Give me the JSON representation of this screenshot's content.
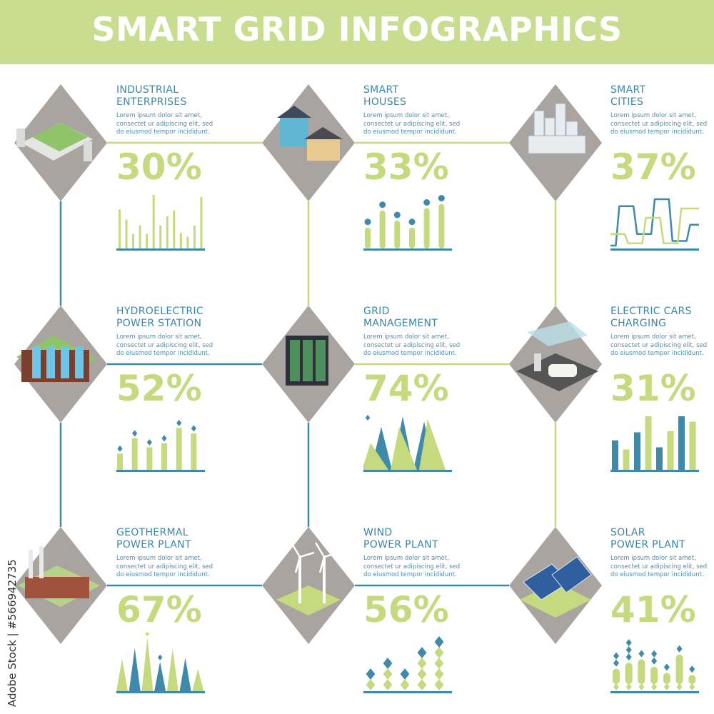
{
  "header": {
    "title": "SMART GRID INFOGRAPHICS"
  },
  "credit": "Adobe Stock | #566942735",
  "colors": {
    "green": "#c5da7e",
    "blue": "#3e8aa8",
    "header": "#c8dd8f",
    "diamond": "#a9a49f",
    "title_text": "#3a87a8"
  },
  "cards": [
    {
      "title1": "INDUSTRIAL",
      "title2": "ENTERPRISES",
      "desc": "Lorem ipsum dolor sit amet, consectet ur adipiscing elit, sed do eiusmod tempor incididunt.",
      "percent": "30%",
      "icon": "factory-icon",
      "chart": {
        "type": "bar",
        "values": [
          0.73,
          0.54,
          0.27,
          0.43,
          0.27,
          1.0,
          0.43,
          0.6,
          0.71,
          0.29,
          0.22,
          0.43,
          0.96
        ]
      }
    },
    {
      "title1": "SMART",
      "title2": "HOUSES",
      "desc": "Lorem ipsum dolor sit amet, consectet ur adipiscing elit, sed do eiusmod tempor incididunt.",
      "percent": "33%",
      "icon": "houses-icon",
      "chart": {
        "type": "lollipop",
        "values": [
          0.45,
          0.82,
          0.6,
          0.45,
          0.87,
          0.96
        ]
      }
    },
    {
      "title1": "SMART",
      "title2": "CITIES",
      "desc": "Lorem ipsum dolor sit amet, consectet ur adipiscing elit, sed do eiusmod tempor incididunt.",
      "percent": "37%",
      "icon": "city-icon",
      "chart": {
        "type": "step-lines",
        "series": [
          [
            0,
            0.85,
            0.85,
            0.25,
            0.25,
            1,
            1,
            0.1,
            0.1,
            0.45,
            0.45
          ],
          [
            0.25,
            0.25,
            0.05,
            0.05,
            0.6,
            0.6,
            0.05,
            0.05,
            0.8,
            0.8,
            0.8
          ]
        ]
      }
    },
    {
      "title1": "HYDROELECTRIC",
      "title2": "POWER STATION",
      "desc": "Lorem ipsum dolor sit amet, consectet ur adipiscing elit, sed do eiusmod tempor incididunt.",
      "percent": "52%",
      "icon": "dam-icon",
      "chart": {
        "type": "bar-diamond",
        "values": [
          0.36,
          0.7,
          0.5,
          0.59,
          0.93,
          0.81
        ]
      }
    },
    {
      "title1": "GRID",
      "title2": "MANAGEMENT",
      "desc": "Lorem ipsum dolor sit amet, consectet ur adipiscing elit, sed do eiusmod tempor incididunt.",
      "percent": "74%",
      "icon": "server-rack-icon",
      "chart": {
        "type": "mountains",
        "green": [
          0.5,
          0.8,
          0.95
        ],
        "blue": [
          0.8,
          1.0,
          0.9
        ]
      }
    },
    {
      "title1": "ELECTRIC CARS",
      "title2": "CHARGING",
      "desc": "Lorem ipsum dolor sit amet, consectet ur adipiscing elit, sed do eiusmod tempor incididunt.",
      "percent": "31%",
      "icon": "car-charging-icon",
      "chart": {
        "type": "bar-alt",
        "values": [
          0.55,
          0.38,
          0.7,
          1.0,
          0.42,
          0.72,
          1.0,
          0.9
        ]
      }
    },
    {
      "title1": "GEOTHERMAL",
      "title2": "POWER PLANT",
      "desc": "Lorem ipsum dolor sit amet, consectet ur adipiscing elit, sed do eiusmod tempor incididunt.",
      "percent": "67%",
      "icon": "geothermal-plant-icon",
      "chart": {
        "type": "spikes",
        "values": [
          0.6,
          0.8,
          1.0,
          0.55,
          0.8,
          0.62,
          0.42
        ]
      }
    },
    {
      "title1": "WIND",
      "title2": "POWER PLANT",
      "desc": "Lorem ipsum dolor sit amet, consectet ur adipiscing elit, sed do eiusmod tempor incididunt.",
      "percent": "56%",
      "icon": "wind-turbine-icon",
      "chart": {
        "type": "diamond-stack",
        "values": [
          2,
          3,
          2,
          4,
          5
        ]
      }
    },
    {
      "title1": "SOLAR",
      "title2": "POWER PLANT",
      "desc": "Lorem ipsum dolor sit amet, consectet ur adipiscing elit, sed do eiusmod tempor incididunt.",
      "percent": "41%",
      "icon": "solar-panel-icon",
      "chart": {
        "type": "capsules",
        "values": [
          0.55,
          0.7,
          0.78,
          0.6,
          0.45,
          0.9,
          0.4
        ],
        "tops": [
          2,
          3,
          1,
          2,
          1,
          1,
          1
        ]
      }
    }
  ]
}
